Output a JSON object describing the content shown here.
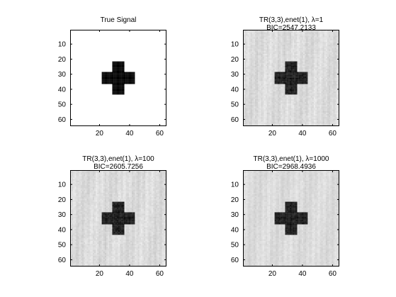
{
  "figure": {
    "background": "#ffffff"
  },
  "chart_data": [
    {
      "type": "heatmap",
      "title": "True Signal",
      "subtitle": "",
      "image_size": [
        64,
        64
      ],
      "xlim": [
        0.5,
        64.5
      ],
      "ylim": [
        0.5,
        64.5
      ],
      "y_direction": "reverse",
      "x_ticks": [
        20,
        40,
        60
      ],
      "y_ticks": [
        10,
        20,
        30,
        40,
        50,
        60
      ],
      "colormap": "gray",
      "background_value": 1.0,
      "background_noise": 0.0,
      "cross": {
        "rows": [
          22,
          43
        ],
        "cols": [
          22,
          43
        ],
        "arm_rows": [
          29,
          36
        ],
        "arm_cols": [
          29,
          36
        ],
        "value": 0.0,
        "noise": 0.0
      }
    },
    {
      "type": "heatmap",
      "title": "TR(3,3),enet(1), λ=1",
      "subtitle": "BIC=2547.2133",
      "image_size": [
        64,
        64
      ],
      "xlim": [
        0.5,
        64.5
      ],
      "ylim": [
        0.5,
        64.5
      ],
      "y_direction": "reverse",
      "x_ticks": [
        20,
        40,
        60
      ],
      "y_ticks": [
        10,
        20,
        30,
        40,
        50,
        60
      ],
      "colormap": "gray",
      "background_value": 0.86,
      "background_noise": 0.06,
      "cross": {
        "rows": [
          22,
          43
        ],
        "cols": [
          22,
          43
        ],
        "arm_rows": [
          29,
          36
        ],
        "arm_cols": [
          29,
          36
        ],
        "value": 0.1,
        "noise": 0.06
      }
    },
    {
      "type": "heatmap",
      "title": "TR(3,3),enet(1), λ=100",
      "subtitle": "BIC=2605.7256",
      "image_size": [
        64,
        64
      ],
      "xlim": [
        0.5,
        64.5
      ],
      "ylim": [
        0.5,
        64.5
      ],
      "y_direction": "reverse",
      "x_ticks": [
        20,
        40,
        60
      ],
      "y_ticks": [
        10,
        20,
        30,
        40,
        50,
        60
      ],
      "colormap": "gray",
      "background_value": 0.86,
      "background_noise": 0.06,
      "cross": {
        "rows": [
          22,
          43
        ],
        "cols": [
          22,
          43
        ],
        "arm_rows": [
          29,
          36
        ],
        "arm_cols": [
          29,
          36
        ],
        "value": 0.1,
        "noise": 0.06
      }
    },
    {
      "type": "heatmap",
      "title": "TR(3,3),enet(1), λ=1000",
      "subtitle": "BIC=2968.4936",
      "image_size": [
        64,
        64
      ],
      "xlim": [
        0.5,
        64.5
      ],
      "ylim": [
        0.5,
        64.5
      ],
      "y_direction": "reverse",
      "x_ticks": [
        20,
        40,
        60
      ],
      "y_ticks": [
        10,
        20,
        30,
        40,
        50,
        60
      ],
      "colormap": "gray",
      "background_value": 0.86,
      "background_noise": 0.05,
      "cross": {
        "rows": [
          22,
          43
        ],
        "cols": [
          22,
          43
        ],
        "arm_rows": [
          29,
          36
        ],
        "arm_cols": [
          29,
          36
        ],
        "value": 0.1,
        "noise": 0.05
      }
    }
  ]
}
